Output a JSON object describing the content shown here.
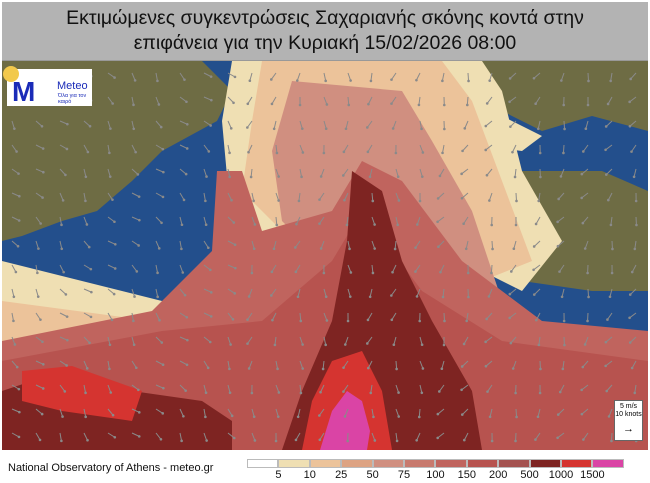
{
  "title": {
    "line1": "Εκτιμώμενες συγκεντρώσεις Σαχαριανής σκόνης κοντά στην",
    "line2": "επιφάνεια για την Κυριακή 15/02/2026 08:00"
  },
  "logo": {
    "brand": "Meteo",
    "tagline": "Όλα για τον καιρό",
    "icon": "meteo-m-sun-logo"
  },
  "wind_key": {
    "line1": "5 m/s",
    "line2": "10 knots",
    "icon": "arrow-right-icon"
  },
  "footer": {
    "credit": "National Observatory of Athens - meteo.gr"
  },
  "legend": {
    "colors": [
      "#ffffff",
      "#efdfb3",
      "#ecc39a",
      "#dda383",
      "#d08f80",
      "#c87a6e",
      "#c0645e",
      "#b7534f",
      "#a45250",
      "#7e2422",
      "#d53430",
      "#da44a5"
    ],
    "labels": [
      "5",
      "10",
      "25",
      "50",
      "75",
      "100",
      "150",
      "200",
      "500",
      "1000",
      "1500"
    ]
  },
  "map_colors": {
    "sea": "#234f8c",
    "land": "#6e6c44"
  }
}
